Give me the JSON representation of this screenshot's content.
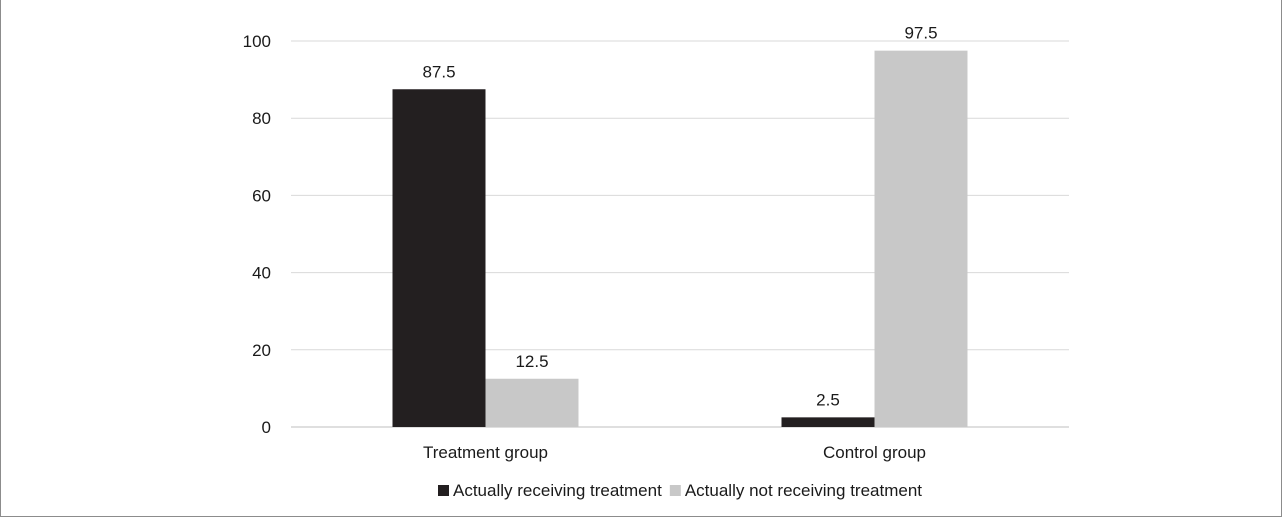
{
  "chart_data": {
    "type": "bar",
    "title": "",
    "xlabel": "",
    "ylabel": "",
    "ylim": [
      0,
      100
    ],
    "yticks": [
      0,
      20,
      40,
      60,
      80,
      100
    ],
    "grid": true,
    "legend_position": "bottom",
    "categories": [
      "Treatment group",
      "Control group"
    ],
    "series": [
      {
        "name": "Actually receiving treatment",
        "values": [
          87.5,
          2.5
        ],
        "color": "#231f20"
      },
      {
        "name": "Actually not receiving treatment",
        "values": [
          12.5,
          97.5
        ],
        "color": "#c8c8c8"
      }
    ]
  }
}
